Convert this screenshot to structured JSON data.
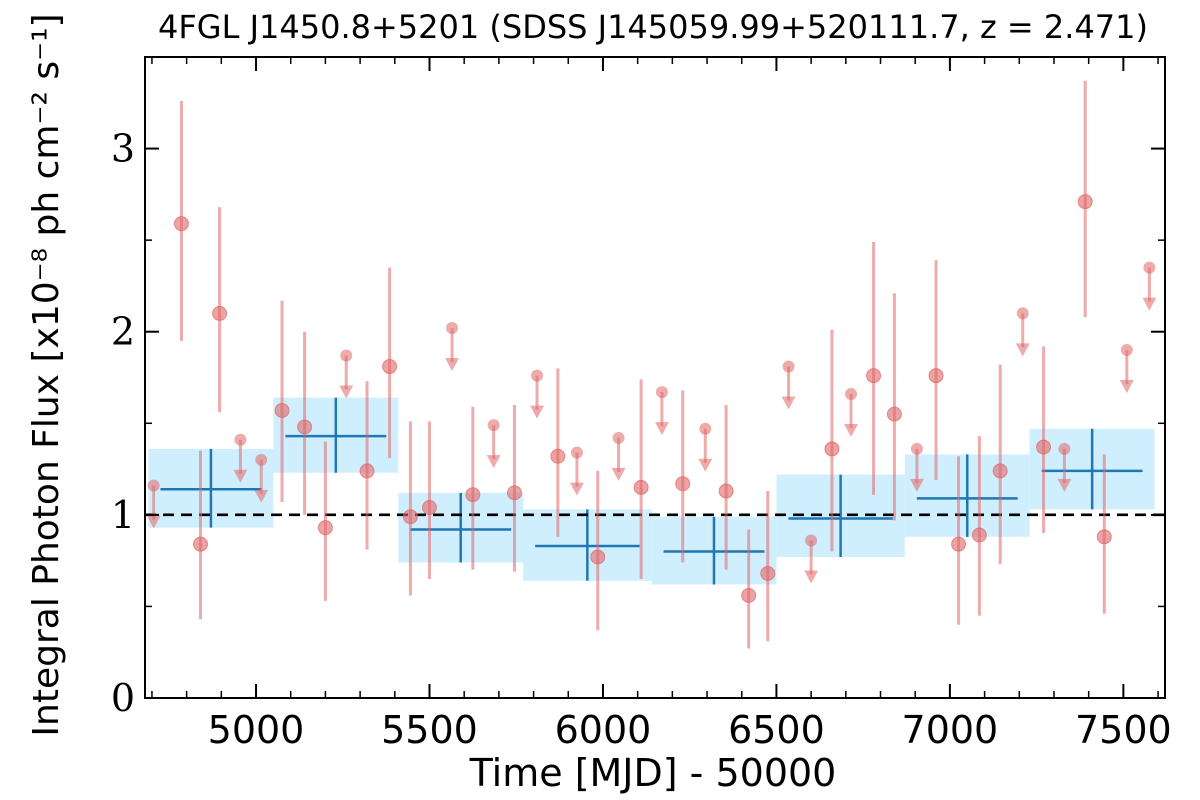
{
  "chart_data": {
    "type": "scatter",
    "title": "4FGL J1450.8+5201 (SDSS J145059.99+520111.7, z = 2.471)",
    "xlabel": "Time [MJD] - 50000",
    "ylabel": "Integral Photon Flux [x10⁻⁸ ph cm⁻² s⁻¹]",
    "xlim": [
      4680,
      7620
    ],
    "ylim": [
      0,
      3.5
    ],
    "x_ticks": [
      5000,
      5500,
      6000,
      6500,
      7000,
      7500
    ],
    "y_ticks": [
      0,
      1,
      2,
      3
    ],
    "x_tick_labels": [
      "5000",
      "5500",
      "6000",
      "6500",
      "7000",
      "7500"
    ],
    "y_tick_labels": [
      "0",
      "1",
      "2",
      "3"
    ],
    "grid": false,
    "reference_line": {
      "style": "dashed",
      "color": "#000000",
      "y": 1.0
    },
    "colors": {
      "points": "#e06666",
      "bins_fill": "#cdeefe",
      "bins_line": "#1f77b4",
      "reference": "#000000"
    },
    "series": [
      {
        "kind": "detection",
        "points": [
          {
            "x": 4785,
            "y": 2.59,
            "lo": 1.95,
            "hi": 3.26
          },
          {
            "x": 4840,
            "y": 0.84,
            "lo": 0.43,
            "hi": 1.35
          },
          {
            "x": 4895,
            "y": 2.1,
            "lo": 1.56,
            "hi": 2.68
          },
          {
            "x": 5075,
            "y": 1.57,
            "lo": 1.07,
            "hi": 2.17
          },
          {
            "x": 5140,
            "y": 1.48,
            "lo": 1.0,
            "hi": 2.0
          },
          {
            "x": 5200,
            "y": 0.93,
            "lo": 0.53,
            "hi": 1.4
          },
          {
            "x": 5320,
            "y": 1.24,
            "lo": 0.81,
            "hi": 1.73
          },
          {
            "x": 5385,
            "y": 1.81,
            "lo": 1.31,
            "hi": 2.35
          },
          {
            "x": 5445,
            "y": 0.99,
            "lo": 0.56,
            "hi": 1.51
          },
          {
            "x": 5500,
            "y": 1.04,
            "lo": 0.65,
            "hi": 1.51
          },
          {
            "x": 5625,
            "y": 1.11,
            "lo": 0.7,
            "hi": 1.59
          },
          {
            "x": 5745,
            "y": 1.12,
            "lo": 0.69,
            "hi": 1.6
          },
          {
            "x": 5870,
            "y": 1.32,
            "lo": 0.88,
            "hi": 1.8
          },
          {
            "x": 5985,
            "y": 0.77,
            "lo": 0.37,
            "hi": 1.24
          },
          {
            "x": 6110,
            "y": 1.15,
            "lo": 0.65,
            "hi": 1.74
          },
          {
            "x": 6230,
            "y": 1.17,
            "lo": 0.74,
            "hi": 1.68
          },
          {
            "x": 6355,
            "y": 1.13,
            "lo": 0.7,
            "hi": 1.6
          },
          {
            "x": 6420,
            "y": 0.56,
            "lo": 0.27,
            "hi": 0.92
          },
          {
            "x": 6475,
            "y": 0.68,
            "lo": 0.31,
            "hi": 1.13
          },
          {
            "x": 6660,
            "y": 1.36,
            "lo": 0.8,
            "hi": 2.01
          },
          {
            "x": 6780,
            "y": 1.76,
            "lo": 1.11,
            "hi": 2.49
          },
          {
            "x": 6840,
            "y": 1.55,
            "lo": 0.97,
            "hi": 2.21
          },
          {
            "x": 6960,
            "y": 1.76,
            "lo": 1.19,
            "hi": 2.39
          },
          {
            "x": 7025,
            "y": 0.84,
            "lo": 0.4,
            "hi": 1.32
          },
          {
            "x": 7085,
            "y": 0.89,
            "lo": 0.45,
            "hi": 1.43
          },
          {
            "x": 7145,
            "y": 1.24,
            "lo": 0.73,
            "hi": 1.82
          },
          {
            "x": 7270,
            "y": 1.37,
            "lo": 0.9,
            "hi": 1.92
          },
          {
            "x": 7390,
            "y": 2.71,
            "lo": 2.08,
            "hi": 3.37
          },
          {
            "x": 7445,
            "y": 0.88,
            "lo": 0.46,
            "hi": 1.33
          }
        ]
      },
      {
        "kind": "upper_limit",
        "points": [
          {
            "x": 4705,
            "y": 1.16
          },
          {
            "x": 4955,
            "y": 1.41
          },
          {
            "x": 5015,
            "y": 1.3
          },
          {
            "x": 5260,
            "y": 1.87
          },
          {
            "x": 5565,
            "y": 2.02
          },
          {
            "x": 5685,
            "y": 1.49
          },
          {
            "x": 5810,
            "y": 1.76
          },
          {
            "x": 5925,
            "y": 1.34
          },
          {
            "x": 6045,
            "y": 1.42
          },
          {
            "x": 6170,
            "y": 1.67
          },
          {
            "x": 6295,
            "y": 1.47
          },
          {
            "x": 6535,
            "y": 1.81
          },
          {
            "x": 6600,
            "y": 0.86
          },
          {
            "x": 6715,
            "y": 1.66
          },
          {
            "x": 6905,
            "y": 1.36
          },
          {
            "x": 7210,
            "y": 2.1
          },
          {
            "x": 7330,
            "y": 1.36
          },
          {
            "x": 7510,
            "y": 1.9
          },
          {
            "x": 7575,
            "y": 2.35
          }
        ]
      },
      {
        "kind": "binned",
        "bins": [
          {
            "x0": 4690,
            "x1": 5050,
            "y": 1.14,
            "lo": 0.93,
            "hi": 1.36
          },
          {
            "x0": 5050,
            "x1": 5410,
            "y": 1.43,
            "lo": 1.23,
            "hi": 1.64
          },
          {
            "x0": 5410,
            "x1": 5770,
            "y": 0.92,
            "lo": 0.74,
            "hi": 1.12
          },
          {
            "x0": 5770,
            "x1": 6140,
            "y": 0.83,
            "lo": 0.64,
            "hi": 1.03
          },
          {
            "x0": 6140,
            "x1": 6500,
            "y": 0.8,
            "lo": 0.62,
            "hi": 0.99
          },
          {
            "x0": 6500,
            "x1": 6870,
            "y": 0.98,
            "lo": 0.77,
            "hi": 1.22
          },
          {
            "x0": 6870,
            "x1": 7230,
            "y": 1.09,
            "lo": 0.88,
            "hi": 1.33
          },
          {
            "x0": 7230,
            "x1": 7590,
            "y": 1.24,
            "lo": 1.03,
            "hi": 1.47
          }
        ]
      }
    ]
  }
}
